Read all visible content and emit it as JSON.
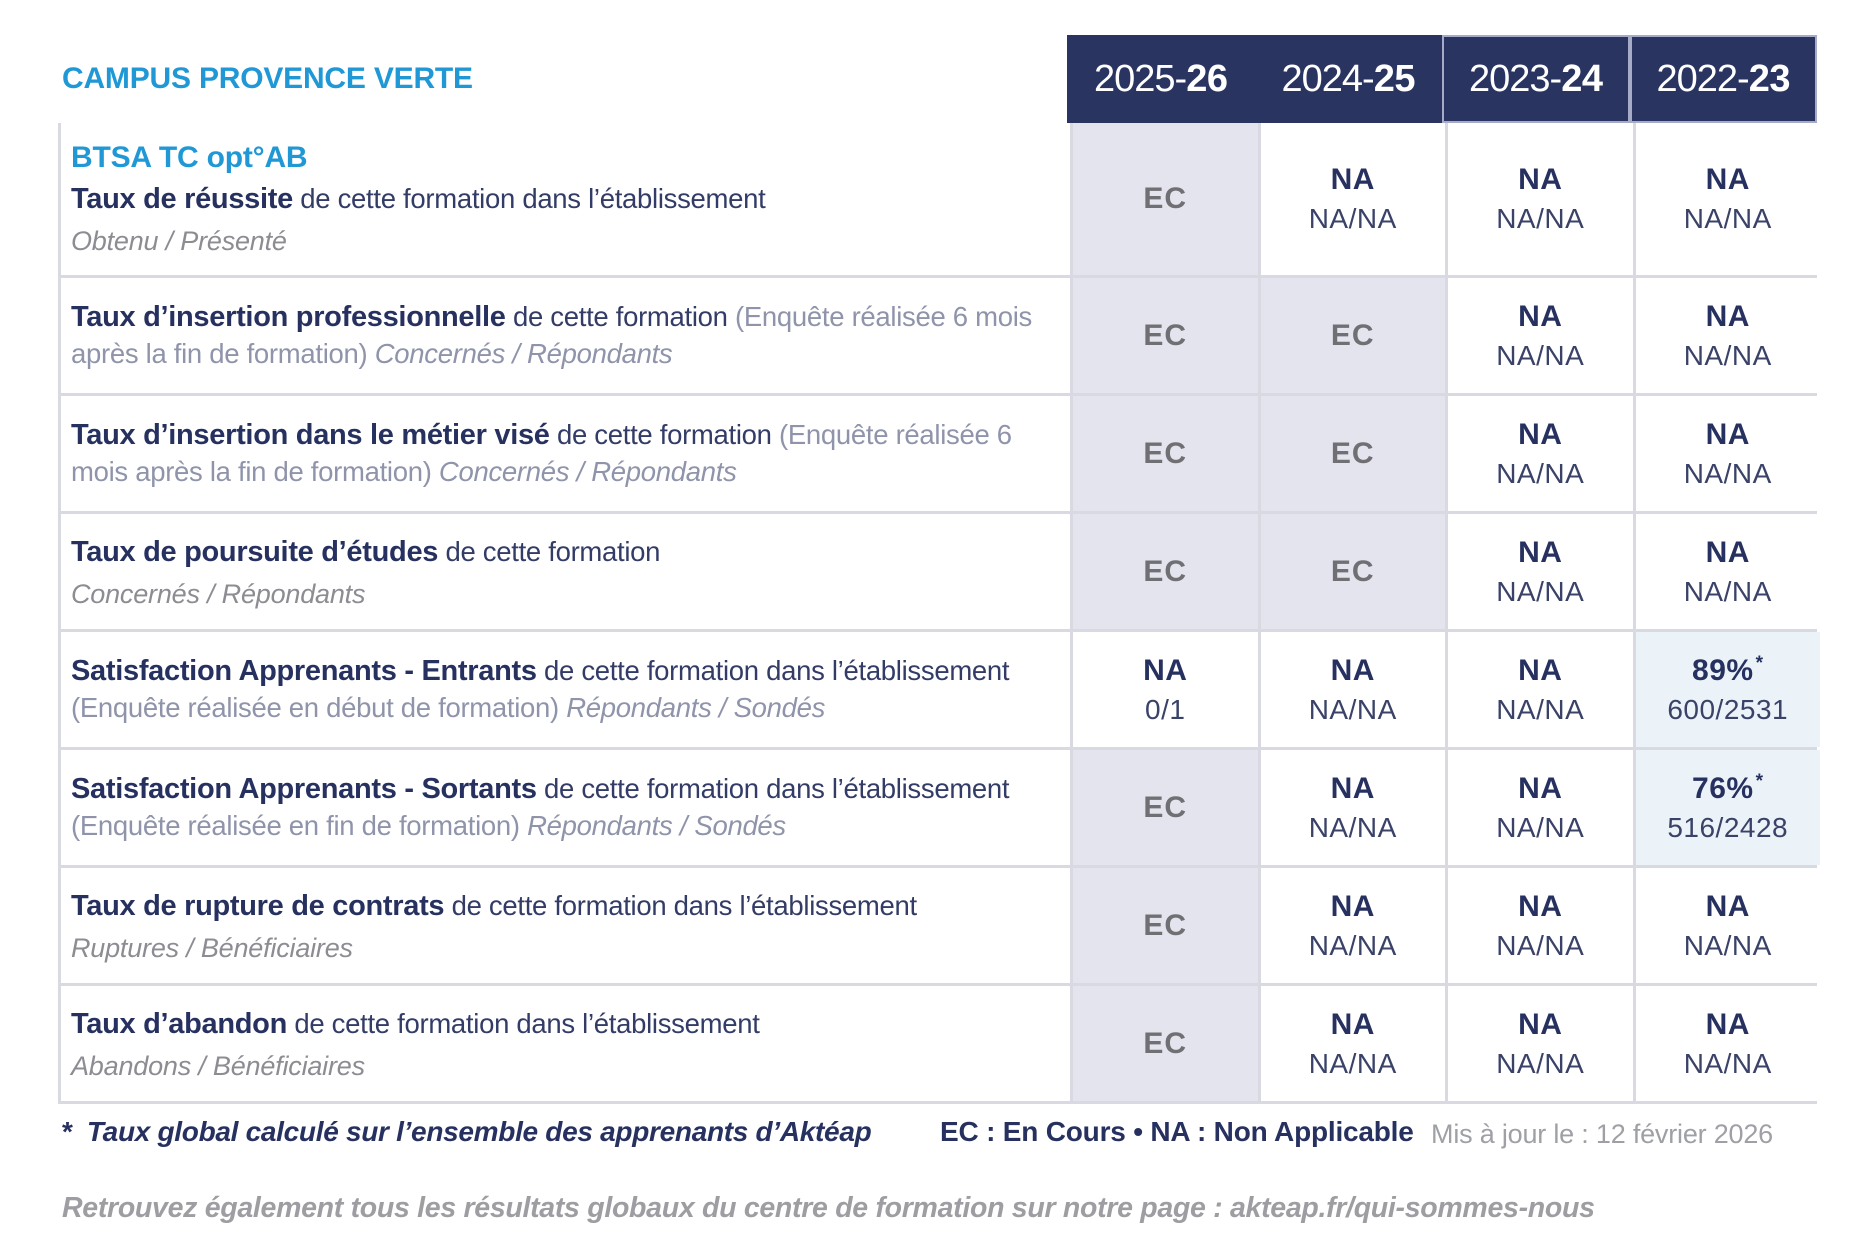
{
  "colors": {
    "accent_blue": "#2098D6",
    "navy": "#2A3461",
    "cell_gray_bg": "#E4E4EE",
    "cell_blue_bg": "#EBF3F9",
    "border_gray": "#D9D9E1",
    "muted_gray": "#8F94AB"
  },
  "header": {
    "campus": "CAMPUS PROVENCE VERTE",
    "years": [
      {
        "pre": "2025-",
        "bold": "26"
      },
      {
        "pre": "2024-",
        "bold": "25"
      },
      {
        "pre": "2023-",
        "bold": "24"
      },
      {
        "pre": "2022-",
        "bold": "23"
      }
    ]
  },
  "rows": [
    {
      "program": "BTSA TC opt°AB",
      "label": {
        "bold": "Taux de réussite",
        "regular": " de cette formation dans l’établissement"
      },
      "subline": "Obtenu / Présenté",
      "cells": [
        {
          "bg": "gray",
          "main": "EC"
        },
        {
          "bg": "white",
          "main": "NA",
          "sub": "NA/NA"
        },
        {
          "bg": "white",
          "main": "NA",
          "sub": "NA/NA"
        },
        {
          "bg": "white",
          "main": "NA",
          "sub": "NA/NA"
        }
      ]
    },
    {
      "label": {
        "bold": "Taux d’insertion professionnelle",
        "regular": " de cette formation ",
        "muted": "(Enquête réalisée 6 mois après la fin de formation) ",
        "tail": "Concernés / Répondants"
      },
      "cells": [
        {
          "bg": "gray",
          "main": "EC"
        },
        {
          "bg": "gray",
          "main": "EC"
        },
        {
          "bg": "white",
          "main": "NA",
          "sub": "NA/NA"
        },
        {
          "bg": "white",
          "main": "NA",
          "sub": "NA/NA"
        }
      ]
    },
    {
      "label": {
        "bold": "Taux d’insertion dans le métier visé",
        "regular": " de cette formation ",
        "muted": "(Enquête réalisée 6 mois après la fin de formation) ",
        "tail": "Concernés / Répondants"
      },
      "cells": [
        {
          "bg": "gray",
          "main": "EC"
        },
        {
          "bg": "gray",
          "main": "EC"
        },
        {
          "bg": "white",
          "main": "NA",
          "sub": "NA/NA"
        },
        {
          "bg": "white",
          "main": "NA",
          "sub": "NA/NA"
        }
      ]
    },
    {
      "label": {
        "bold": "Taux de poursuite d’études",
        "regular": " de cette formation"
      },
      "subline": "Concernés / Répondants",
      "cells": [
        {
          "bg": "gray",
          "main": "EC"
        },
        {
          "bg": "gray",
          "main": "EC"
        },
        {
          "bg": "white",
          "main": "NA",
          "sub": "NA/NA"
        },
        {
          "bg": "white",
          "main": "NA",
          "sub": "NA/NA"
        }
      ]
    },
    {
      "label": {
        "bold": "Satisfaction Apprenants - Entrants",
        "regular": " de cette formation dans l’établissement ",
        "muted": "(Enquête réalisée en début de formation) ",
        "tail": "Répondants / Sondés"
      },
      "cells": [
        {
          "bg": "white",
          "main": "NA",
          "sub": "0/1"
        },
        {
          "bg": "white",
          "main": "NA",
          "sub": "NA/NA"
        },
        {
          "bg": "white",
          "main": "NA",
          "sub": "NA/NA"
        },
        {
          "bg": "blue",
          "main": "89%",
          "star": true,
          "sub": "600/2531"
        }
      ]
    },
    {
      "label": {
        "bold": "Satisfaction Apprenants - Sortants",
        "regular": " de cette formation dans l’établissement ",
        "muted": "(Enquête réalisée en fin de formation) ",
        "tail": "Répondants / Sondés"
      },
      "cells": [
        {
          "bg": "gray",
          "main": "EC"
        },
        {
          "bg": "white",
          "main": "NA",
          "sub": "NA/NA"
        },
        {
          "bg": "white",
          "main": "NA",
          "sub": "NA/NA"
        },
        {
          "bg": "blue",
          "main": "76%",
          "star": true,
          "sub": "516/2428"
        }
      ]
    },
    {
      "label": {
        "bold": "Taux de rupture de contrats",
        "regular": " de cette formation dans l’établissement"
      },
      "subline": "Ruptures / Bénéficiaires",
      "cells": [
        {
          "bg": "gray",
          "main": "EC"
        },
        {
          "bg": "white",
          "main": "NA",
          "sub": "NA/NA"
        },
        {
          "bg": "white",
          "main": "NA",
          "sub": "NA/NA"
        },
        {
          "bg": "white",
          "main": "NA",
          "sub": "NA/NA"
        }
      ]
    },
    {
      "label": {
        "bold": "Taux d’abandon",
        "regular": " de cette formation dans l’établissement"
      },
      "subline": "Abandons / Bénéficiaires",
      "cells": [
        {
          "bg": "gray",
          "main": "EC"
        },
        {
          "bg": "white",
          "main": "NA",
          "sub": "NA/NA"
        },
        {
          "bg": "white",
          "main": "NA",
          "sub": "NA/NA"
        },
        {
          "bg": "white",
          "main": "NA",
          "sub": "NA/NA"
        }
      ]
    }
  ],
  "footer": {
    "star_marker": "*",
    "star_note": "Taux global calculé sur l’ensemble des apprenants d’Aktéap",
    "legend": "EC : En Cours  •  NA : Non Applicable",
    "updated": "Mis à jour le : 12 février 2026",
    "bottom_note": "Retrouvez également tous les résultats globaux du centre de formation sur notre page : akteap.fr/qui-sommes-nous"
  }
}
